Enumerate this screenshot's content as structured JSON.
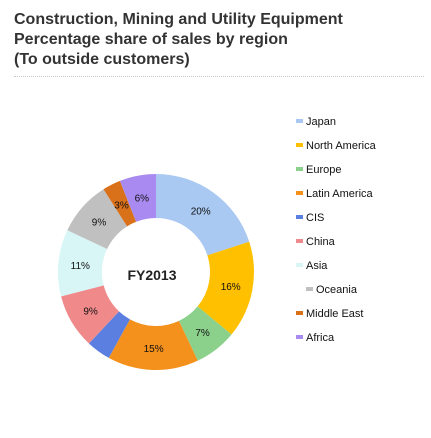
{
  "chart_data": {
    "type": "pie",
    "title": [
      "Construction, Mining and Utility Equipment",
      "Percentage share of sales by region",
      "(To outside customers)"
    ],
    "center_label": "FY2013",
    "legend_position": "right",
    "slices": [
      {
        "name": "Japan",
        "value": 20,
        "label": "20%",
        "color": "#a9c8f2"
      },
      {
        "name": "North America",
        "value": 16,
        "label": "16%",
        "color": "#ffc000"
      },
      {
        "name": "Europe",
        "value": 7,
        "label": "7%",
        "color": "#8bd08b"
      },
      {
        "name": "Latin America",
        "value": 15,
        "label": "15%",
        "color": "#f4901c"
      },
      {
        "name": "CIS",
        "value": 4,
        "label": "",
        "color": "#5b7fe0"
      },
      {
        "name": "China",
        "value": 9,
        "label": "9%",
        "color": "#f08a8a"
      },
      {
        "name": "Asia",
        "value": 11,
        "label": "11%",
        "color": "#d8f6f6"
      },
      {
        "name": "Oceania",
        "value": 9,
        "label": "9%",
        "color": "#c0c0c0"
      },
      {
        "name": "Middle East",
        "value": 3,
        "label": "3%",
        "color": "#d9701a"
      },
      {
        "name": "Africa",
        "value": 6,
        "label": "6%",
        "color": "#a98af0"
      }
    ]
  }
}
